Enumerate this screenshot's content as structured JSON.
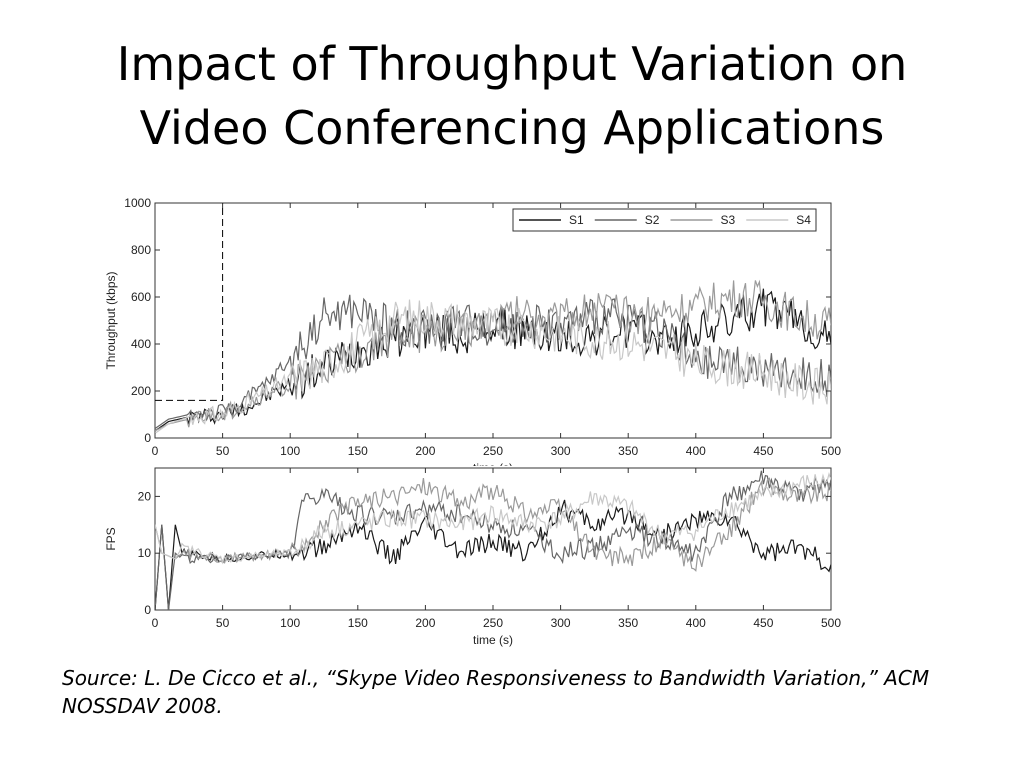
{
  "slide": {
    "title_line1": "Impact of Throughput Variation on",
    "title_line2": "Video Conferencing Applications",
    "source": "Source: L. De Cicco et al., “Skype Video Responsiveness to Bandwidth Variation,” ACM NOSSDAV 2008."
  },
  "chart_data": [
    {
      "type": "line",
      "xlabel": "time (s)",
      "ylabel": "Throughput (kbps)",
      "xlim": [
        0,
        500
      ],
      "ylim": [
        0,
        1000
      ],
      "xticks": [
        0,
        50,
        100,
        150,
        200,
        250,
        300,
        350,
        400,
        450,
        500
      ],
      "yticks": [
        0,
        200,
        400,
        600,
        800,
        1000
      ],
      "legend_position": "top-right",
      "grid": false,
      "available_bandwidth": {
        "x": [
          0,
          50,
          50
        ],
        "y": [
          160,
          160,
          1000
        ],
        "style": "dashed"
      },
      "series": [
        {
          "name": "S1",
          "color": "#1a1a1a",
          "x": [
            0,
            10,
            25,
            50,
            75,
            100,
            125,
            150,
            175,
            200,
            225,
            250,
            275,
            300,
            325,
            350,
            375,
            400,
            425,
            450,
            475,
            500
          ],
          "y": [
            30,
            70,
            90,
            100,
            150,
            230,
            300,
            380,
            420,
            460,
            430,
            480,
            450,
            420,
            430,
            460,
            420,
            450,
            500,
            560,
            500,
            400
          ]
        },
        {
          "name": "S2",
          "color": "#666666",
          "x": [
            0,
            10,
            25,
            50,
            75,
            100,
            125,
            150,
            175,
            200,
            225,
            250,
            275,
            300,
            325,
            350,
            375,
            400,
            425,
            450,
            475,
            500
          ],
          "y": [
            40,
            80,
            100,
            110,
            190,
            330,
            520,
            540,
            480,
            470,
            500,
            470,
            500,
            480,
            520,
            500,
            470,
            300,
            330,
            280,
            270,
            250
          ]
        },
        {
          "name": "S3",
          "color": "#9a9a9a",
          "x": [
            0,
            10,
            25,
            50,
            75,
            100,
            125,
            150,
            175,
            200,
            225,
            250,
            275,
            300,
            325,
            350,
            375,
            400,
            425,
            450,
            475,
            500
          ],
          "y": [
            30,
            60,
            80,
            100,
            160,
            230,
            290,
            360,
            430,
            440,
            450,
            510,
            540,
            500,
            560,
            520,
            540,
            560,
            600,
            590,
            520,
            480
          ]
        },
        {
          "name": "S4",
          "color": "#c8c8c8",
          "x": [
            0,
            10,
            25,
            50,
            75,
            100,
            125,
            150,
            175,
            200,
            225,
            250,
            275,
            300,
            325,
            350,
            375,
            400,
            425,
            450,
            475,
            500
          ],
          "y": [
            20,
            60,
            90,
            100,
            170,
            250,
            300,
            400,
            500,
            520,
            500,
            480,
            470,
            440,
            420,
            410,
            380,
            320,
            300,
            280,
            240,
            200
          ]
        }
      ]
    },
    {
      "type": "line",
      "xlabel": "time (s)",
      "ylabel": "FPS",
      "xlim": [
        0,
        500
      ],
      "ylim": [
        0,
        25
      ],
      "xticks": [
        0,
        50,
        100,
        150,
        200,
        250,
        300,
        350,
        400,
        450,
        500
      ],
      "yticks": [
        0,
        10,
        20
      ],
      "grid": false,
      "series": [
        {
          "name": "S1",
          "color": "#1a1a1a",
          "x": [
            0,
            5,
            10,
            15,
            20,
            50,
            100,
            125,
            150,
            175,
            200,
            225,
            250,
            275,
            300,
            325,
            350,
            375,
            400,
            425,
            450,
            475,
            500
          ],
          "y": [
            0,
            15,
            0,
            15,
            10,
            9,
            10,
            11,
            15,
            9,
            15,
            10,
            12,
            10,
            18,
            15,
            17,
            13,
            16,
            16,
            10,
            11,
            8
          ]
        },
        {
          "name": "S2",
          "color": "#666666",
          "x": [
            0,
            5,
            10,
            15,
            20,
            50,
            100,
            110,
            125,
            150,
            175,
            200,
            225,
            250,
            275,
            300,
            325,
            350,
            375,
            400,
            425,
            450,
            475,
            500
          ],
          "y": [
            0,
            15,
            0,
            10,
            9,
            9,
            10,
            19,
            20,
            17,
            16,
            18,
            17,
            15,
            14,
            10,
            11,
            14,
            12,
            10,
            20,
            23,
            20,
            23
          ]
        },
        {
          "name": "S3",
          "color": "#9a9a9a",
          "x": [
            0,
            5,
            15,
            20,
            50,
            100,
            125,
            150,
            175,
            200,
            225,
            250,
            275,
            300,
            325,
            350,
            375,
            400,
            425,
            450,
            475,
            500
          ],
          "y": [
            15,
            10,
            9,
            10,
            9,
            10,
            15,
            19,
            20,
            22,
            19,
            21,
            17,
            18,
            10,
            9,
            12,
            8,
            14,
            22,
            20,
            21
          ]
        },
        {
          "name": "S4",
          "color": "#c8c8c8",
          "x": [
            0,
            5,
            15,
            20,
            50,
            100,
            125,
            150,
            175,
            200,
            225,
            250,
            275,
            300,
            325,
            350,
            375,
            400,
            425,
            450,
            475,
            500
          ],
          "y": [
            15,
            10,
            9,
            11,
            9,
            10,
            14,
            15,
            16,
            16,
            15,
            17,
            15,
            16,
            20,
            18,
            13,
            14,
            18,
            20,
            22,
            23
          ]
        }
      ]
    }
  ]
}
